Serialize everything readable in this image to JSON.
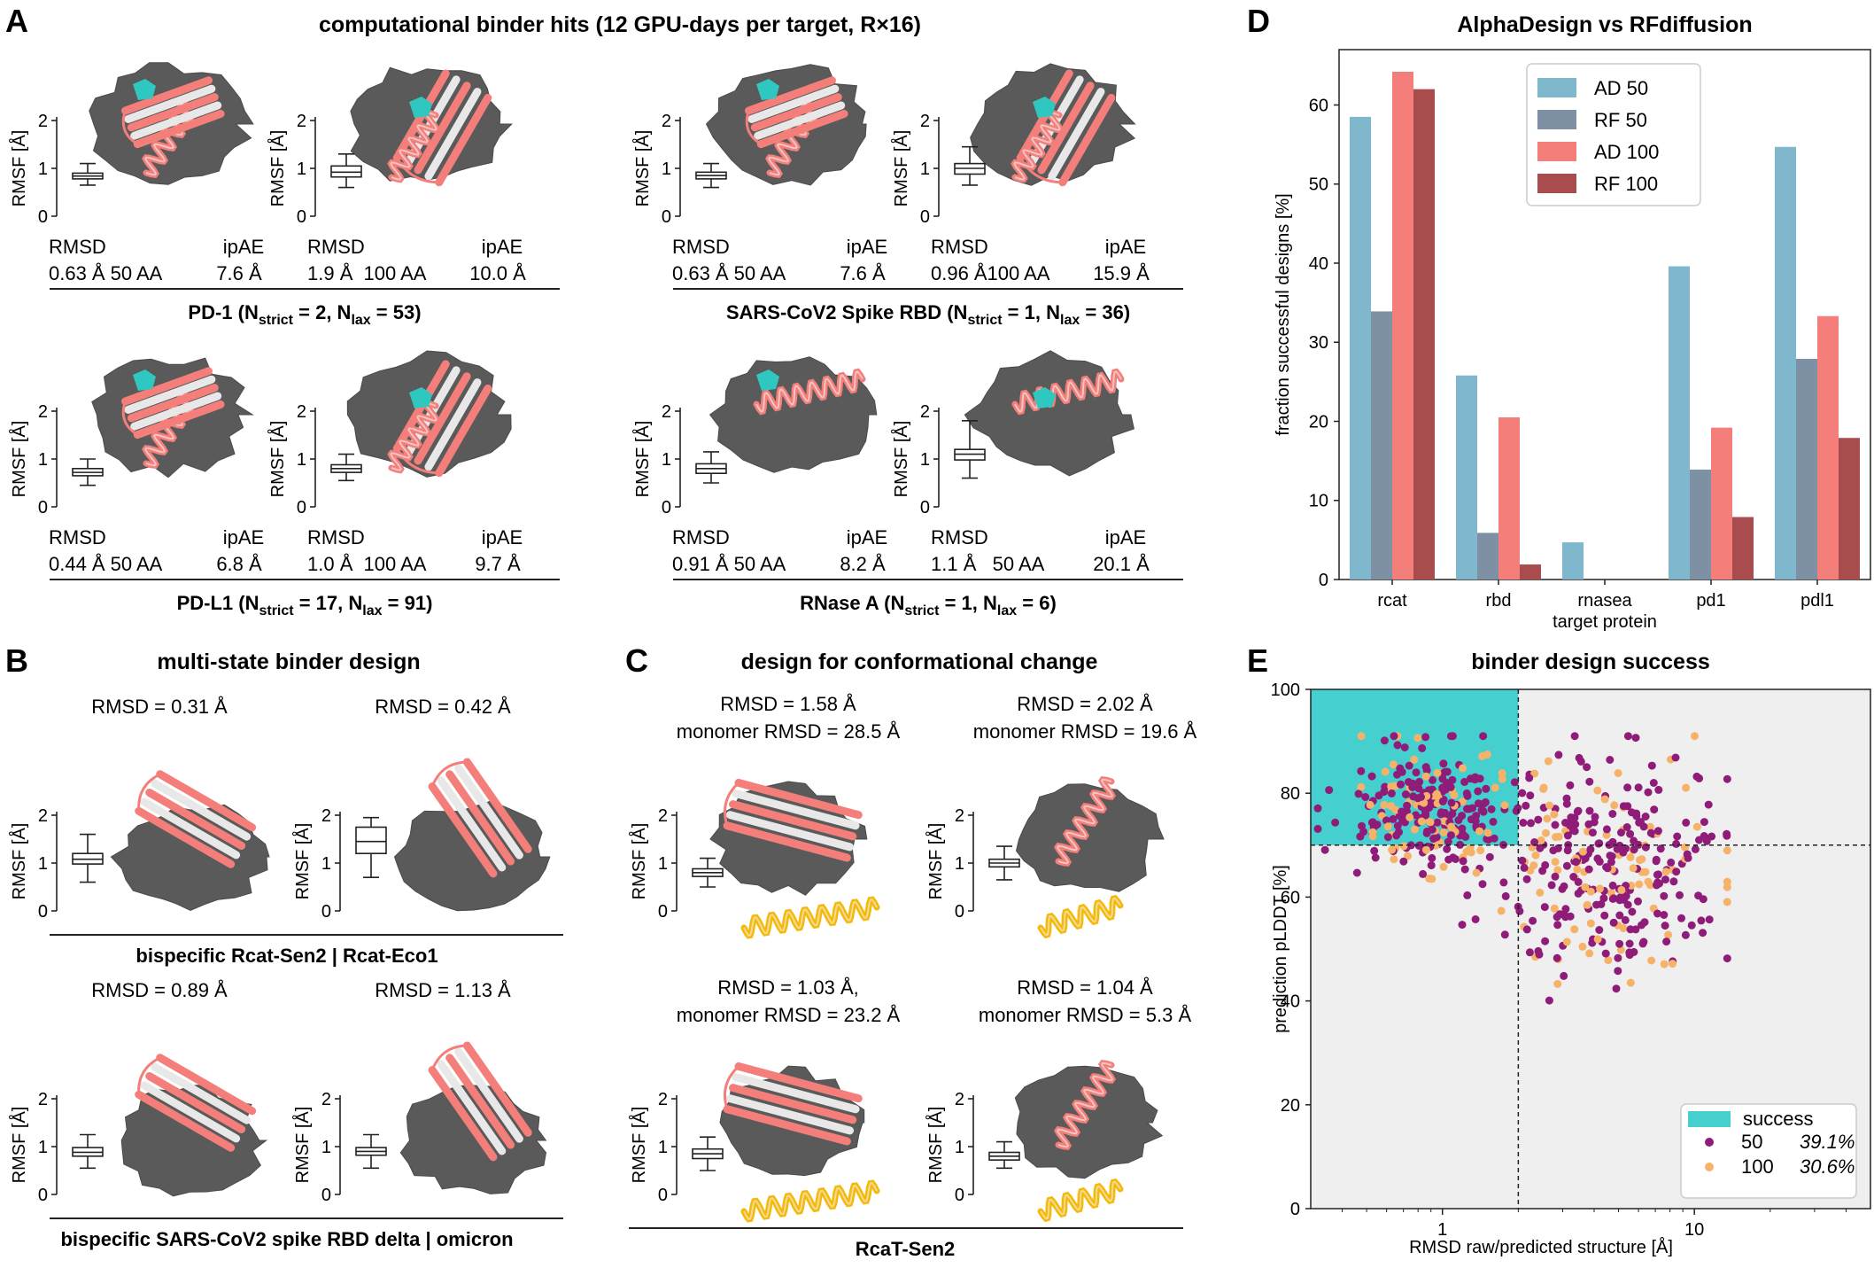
{
  "panels": {
    "A": {
      "letter": "A",
      "title": "computational binder hits (12 GPU-days per target, R×16)",
      "groups": [
        {
          "name": "PD-1",
          "n_strict": "2",
          "n_lax": "53",
          "models": [
            {
              "rmsd": "0.63 Å",
              "aa": "50 AA",
              "ipae": "7.6 Å",
              "box": [
                0.65,
                0.78,
                0.84,
                0.9,
                1.1
              ]
            },
            {
              "rmsd": "1.9 Å",
              "aa": "100 AA",
              "ipae": "10.0 Å",
              "box": [
                0.6,
                0.82,
                0.92,
                1.05,
                1.3
              ]
            }
          ]
        },
        {
          "name": "SARS-CoV2 Spike RBD",
          "n_strict": "1",
          "n_lax": "36",
          "models": [
            {
              "rmsd": "0.63 Å",
              "aa": "50 AA",
              "ipae": "7.6 Å",
              "box": [
                0.6,
                0.78,
                0.85,
                0.92,
                1.1
              ]
            },
            {
              "rmsd": "0.96 Å",
              "aa": "100 AA",
              "ipae": "15.9 Å",
              "box": [
                0.65,
                0.88,
                1.0,
                1.1,
                1.45
              ]
            }
          ]
        },
        {
          "name": "PD-L1",
          "n_strict": "17",
          "n_lax": "91",
          "models": [
            {
              "rmsd": "0.44 Å",
              "aa": "50 AA",
              "ipae": "6.8 Å",
              "box": [
                0.45,
                0.65,
                0.72,
                0.8,
                1.0
              ]
            },
            {
              "rmsd": "1.0 Å",
              "aa": "100 AA",
              "ipae": "9.7 Å",
              "box": [
                0.55,
                0.72,
                0.8,
                0.88,
                1.1
              ]
            }
          ]
        },
        {
          "name": "RNase A",
          "n_strict": "1",
          "n_lax": "6",
          "models": [
            {
              "rmsd": "0.91 Å",
              "aa": "50 AA",
              "ipae": "8.2 Å",
              "box": [
                0.5,
                0.7,
                0.8,
                0.9,
                1.15
              ]
            },
            {
              "rmsd": "1.1 Å",
              "aa": "50 AA",
              "ipae": "20.1 Å",
              "box": [
                0.6,
                0.98,
                1.1,
                1.2,
                1.8
              ]
            }
          ]
        }
      ],
      "rmsd_label": "RMSD",
      "ipae_label": "ipAE",
      "ylabel": "RMSF [Å]",
      "yticks": [
        "0",
        "1",
        "2"
      ]
    },
    "B": {
      "letter": "B",
      "title": "multi-state binder design",
      "rows": [
        {
          "caption": "bispecific Rcat-Sen2 | Rcat-Eco1",
          "models": [
            {
              "rmsd": "RMSD = 0.31 Å",
              "box": [
                0.6,
                0.98,
                1.08,
                1.2,
                1.6
              ]
            },
            {
              "rmsd": "RMSD = 0.42 Å",
              "box": [
                0.7,
                1.2,
                1.45,
                1.75,
                1.95
              ]
            }
          ]
        },
        {
          "caption": "bispecific SARS-CoV2 spike RBD delta | omicron",
          "models": [
            {
              "rmsd": "RMSD = 0.89 Å",
              "box": [
                0.55,
                0.8,
                0.88,
                0.98,
                1.25
              ]
            },
            {
              "rmsd": "RMSD = 1.13 Å",
              "box": [
                0.55,
                0.82,
                0.9,
                0.98,
                1.25
              ]
            }
          ]
        }
      ]
    },
    "C": {
      "letter": "C",
      "title": "design for conformational change",
      "caption": "RcaT-Sen2",
      "models": [
        {
          "line1": "RMSD = 1.58 Å",
          "line2": "monomer RMSD = 28.5 Å",
          "box": [
            0.5,
            0.72,
            0.8,
            0.88,
            1.1
          ]
        },
        {
          "line1": "RMSD = 2.02 Å",
          "line2": "monomer RMSD = 19.6  Å",
          "box": [
            0.65,
            0.92,
            1.0,
            1.08,
            1.35
          ]
        },
        {
          "line1": "RMSD = 1.03 Å,",
          "line2": "monomer RMSD = 23.2 Å",
          "box": [
            0.5,
            0.75,
            0.85,
            0.95,
            1.2
          ]
        },
        {
          "line1": "RMSD = 1.04 Å",
          "line2": "monomer RMSD = 5.3  Å",
          "box": [
            0.55,
            0.72,
            0.8,
            0.88,
            1.1
          ]
        }
      ]
    },
    "D": {
      "letter": "D"
    },
    "E": {
      "letter": "E"
    }
  },
  "chart_data": [
    {
      "type": "bar",
      "title": "AlphaDesign vs RFdiffusion",
      "xlabel": "target protein",
      "ylabel": "fraction successful designs [%]",
      "categories": [
        "rcat",
        "rbd",
        "rnasea",
        "pd1",
        "pdl1"
      ],
      "ylim": [
        0,
        67
      ],
      "yticks": [
        0,
        10,
        20,
        30,
        40,
        50,
        60
      ],
      "legend_position": "top-left",
      "series": [
        {
          "name": "AD 50",
          "color": "#7fb8cc",
          "values": [
            58.5,
            25.8,
            4.7,
            39.6,
            54.7
          ]
        },
        {
          "name": "RF 50",
          "color": "#7e90a4",
          "values": [
            33.9,
            5.9,
            0,
            13.9,
            27.9
          ]
        },
        {
          "name": "AD 100",
          "color": "#f47e7a",
          "values": [
            64.2,
            20.5,
            0,
            19.2,
            33.3
          ]
        },
        {
          "name": "RF 100",
          "color": "#a84c4e",
          "values": [
            62.0,
            1.9,
            0,
            7.9,
            17.9
          ]
        }
      ]
    },
    {
      "type": "scatter",
      "title": "binder design success",
      "xlabel": "RMSD raw/predicted structure [Å]",
      "ylabel": "prediction pLDDT [%]",
      "xscale": "log",
      "xlim": [
        0.3,
        50
      ],
      "ylim": [
        0,
        100
      ],
      "xticks": [
        1,
        10
      ],
      "yticks": [
        0,
        20,
        40,
        60,
        80,
        100
      ],
      "thresholds": {
        "rmsd": 2,
        "plddt": 70
      },
      "legend_position": "bottom-right",
      "legend": {
        "success_label": "success",
        "series_labels": [
          "50",
          "100"
        ],
        "percentages": [
          "39.1%",
          "30.6%"
        ]
      },
      "success_color": "#45cfcf",
      "series": [
        {
          "name": "50",
          "color": "#8e1c78",
          "point_count": 420
        },
        {
          "name": "100",
          "color": "#f7b26a",
          "point_count": 170
        }
      ]
    }
  ]
}
